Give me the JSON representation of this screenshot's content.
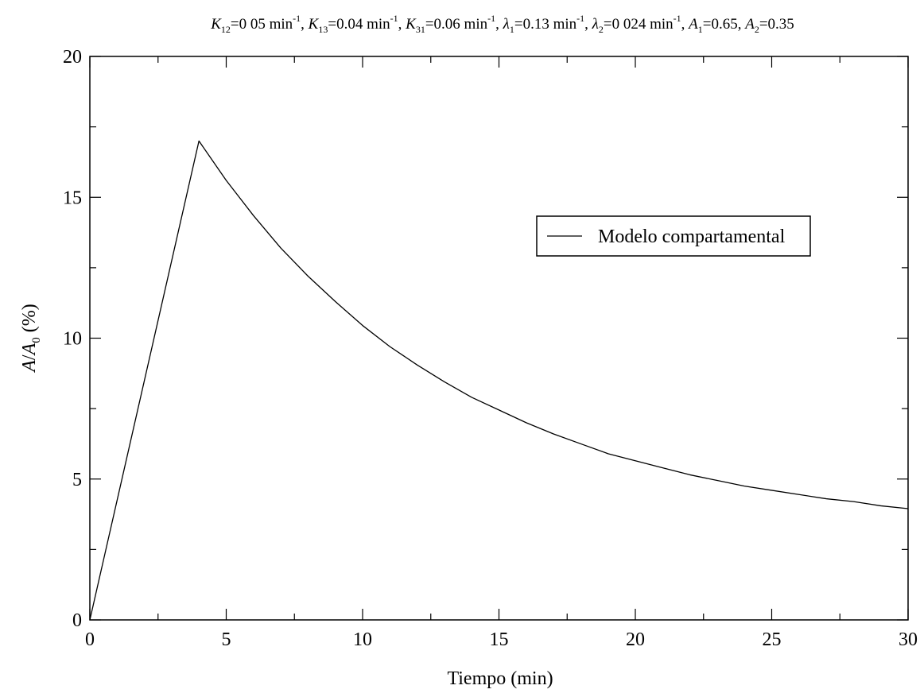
{
  "chart_data": {
    "type": "line",
    "title": {
      "K12": "0 05 min",
      "K13": "0.04 min",
      "K31": "0.06 min",
      "lambda1": "0.13 min",
      "lambda2": "0 024 min",
      "A1": "0.65",
      "A2": "0.35"
    },
    "xlabel": "Tiempo (min)",
    "ylabel": {
      "a": "A",
      "slash": "/",
      "a0": "A",
      "sub": "0",
      "unit": " (%)"
    },
    "xlim": [
      0,
      30
    ],
    "ylim": [
      0,
      20
    ],
    "xticks": [
      "0",
      "5",
      "10",
      "15",
      "20",
      "25",
      "30"
    ],
    "yticks": [
      "0",
      "5",
      "10",
      "15",
      "20"
    ],
    "x_minor_step": 2.5,
    "y_minor_step": 2.5,
    "legend_position": "right, upper-middle",
    "series": [
      {
        "name": "Modelo compartamental",
        "color": "#000000",
        "x": [
          0,
          4,
          5,
          6,
          7,
          8,
          9,
          10,
          11,
          12,
          13,
          14,
          15,
          16,
          17,
          18,
          19,
          20,
          21,
          22,
          23,
          24,
          25,
          26,
          27,
          28,
          29,
          30
        ],
        "y": [
          0,
          17.0,
          15.6,
          14.35,
          13.2,
          12.2,
          11.3,
          10.45,
          9.7,
          9.05,
          8.45,
          7.9,
          7.45,
          7.0,
          6.6,
          6.25,
          5.9,
          5.65,
          5.4,
          5.15,
          4.95,
          4.75,
          4.6,
          4.45,
          4.3,
          4.2,
          4.05,
          3.95
        ]
      }
    ]
  }
}
